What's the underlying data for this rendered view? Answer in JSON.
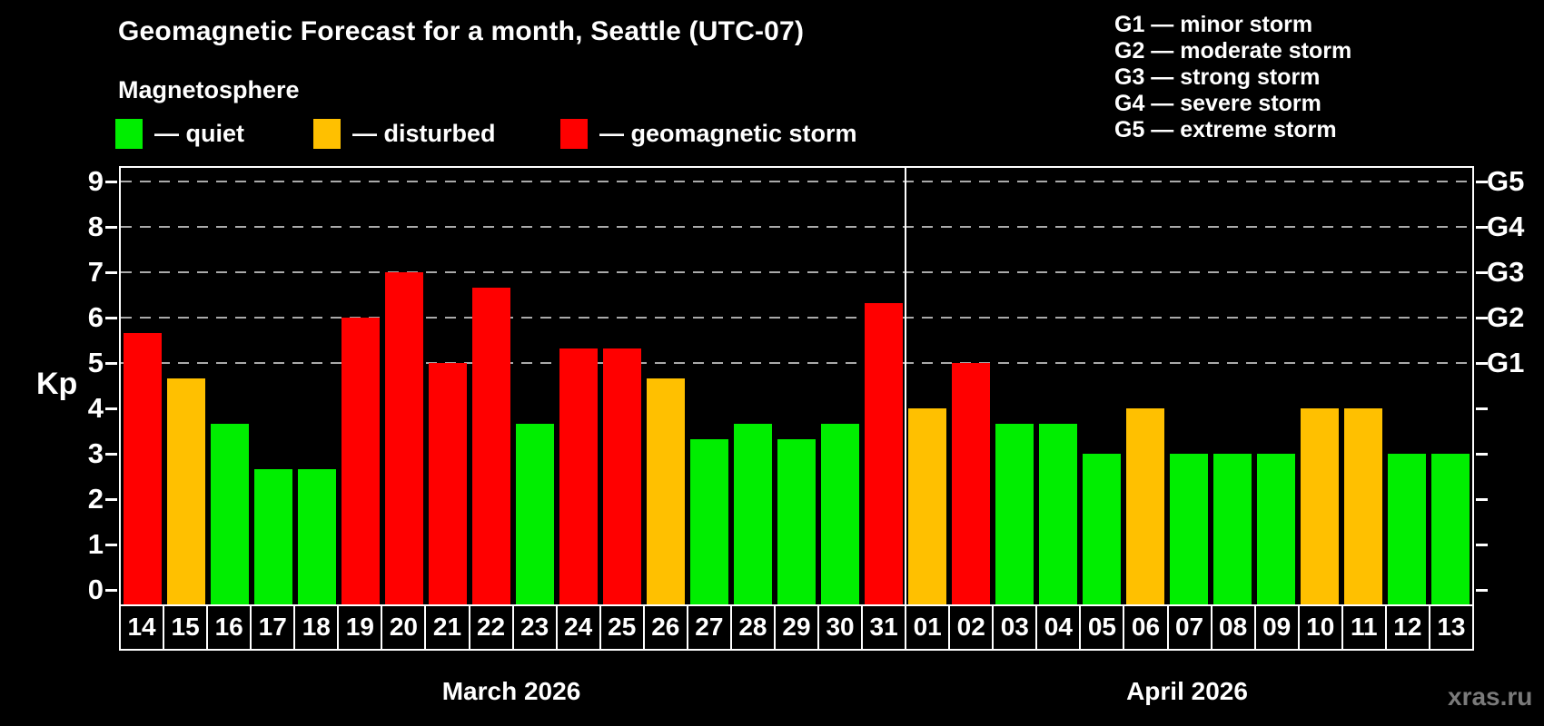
{
  "title": "Geomagnetic Forecast for a month, Seattle (UTC-07)",
  "subtitle": "Magnetosphere",
  "watermark": "xras.ru",
  "magnetosphere_legend": {
    "items": [
      {
        "key": "quiet",
        "label": "— quiet",
        "color": "#00ee00"
      },
      {
        "key": "disturbed",
        "label": "— disturbed",
        "color": "#ffc000"
      },
      {
        "key": "storm",
        "label": "— geomagnetic storm",
        "color": "#ff0000"
      }
    ]
  },
  "storm_scale_legend": {
    "lines": [
      "G1 — minor storm",
      "G2 — moderate storm",
      "G3 — strong storm",
      "G4 — severe storm",
      "G5 — extreme storm"
    ]
  },
  "chart_data": {
    "type": "bar",
    "ylabel": "Kp",
    "ylim": [
      0,
      9
    ],
    "yticks": [
      "0",
      "1",
      "2",
      "3",
      "4",
      "5",
      "6",
      "7",
      "8",
      "9"
    ],
    "gridlines_at_kp": [
      5,
      6,
      7,
      8,
      9
    ],
    "grid_on": true,
    "grid_color": "#aaaaaa",
    "background": "#000000",
    "legend_position": "top-left",
    "right_axis": [
      {
        "kp": 5,
        "label": "G1"
      },
      {
        "kp": 6,
        "label": "G2"
      },
      {
        "kp": 7,
        "label": "G3"
      },
      {
        "kp": 8,
        "label": "G4"
      },
      {
        "kp": 9,
        "label": "G5"
      }
    ],
    "months": [
      {
        "label": "March 2026",
        "start_index": 0,
        "days": 18
      },
      {
        "label": "April 2026",
        "start_index": 18,
        "days": 13
      }
    ],
    "status_colors": {
      "quiet": "#00ee00",
      "disturbed": "#ffc000",
      "storm": "#ff0000"
    },
    "bars": [
      {
        "day": "14",
        "kp": 5.67,
        "status": "storm"
      },
      {
        "day": "15",
        "kp": 4.67,
        "status": "disturbed"
      },
      {
        "day": "16",
        "kp": 3.67,
        "status": "quiet"
      },
      {
        "day": "17",
        "kp": 2.67,
        "status": "quiet"
      },
      {
        "day": "18",
        "kp": 2.67,
        "status": "quiet"
      },
      {
        "day": "19",
        "kp": 6.0,
        "status": "storm"
      },
      {
        "day": "20",
        "kp": 7.0,
        "status": "storm"
      },
      {
        "day": "21",
        "kp": 5.0,
        "status": "storm"
      },
      {
        "day": "22",
        "kp": 6.67,
        "status": "storm"
      },
      {
        "day": "23",
        "kp": 3.67,
        "status": "quiet"
      },
      {
        "day": "24",
        "kp": 5.33,
        "status": "storm"
      },
      {
        "day": "25",
        "kp": 5.33,
        "status": "storm"
      },
      {
        "day": "26",
        "kp": 4.67,
        "status": "disturbed"
      },
      {
        "day": "27",
        "kp": 3.33,
        "status": "quiet"
      },
      {
        "day": "28",
        "kp": 3.67,
        "status": "quiet"
      },
      {
        "day": "29",
        "kp": 3.33,
        "status": "quiet"
      },
      {
        "day": "30",
        "kp": 3.67,
        "status": "quiet"
      },
      {
        "day": "31",
        "kp": 6.33,
        "status": "storm"
      },
      {
        "day": "01",
        "kp": 4.0,
        "status": "disturbed"
      },
      {
        "day": "02",
        "kp": 5.0,
        "status": "storm"
      },
      {
        "day": "03",
        "kp": 3.67,
        "status": "quiet"
      },
      {
        "day": "04",
        "kp": 3.67,
        "status": "quiet"
      },
      {
        "day": "05",
        "kp": 3.0,
        "status": "quiet"
      },
      {
        "day": "06",
        "kp": 4.0,
        "status": "disturbed"
      },
      {
        "day": "07",
        "kp": 3.0,
        "status": "quiet"
      },
      {
        "day": "08",
        "kp": 3.0,
        "status": "quiet"
      },
      {
        "day": "09",
        "kp": 3.0,
        "status": "quiet"
      },
      {
        "day": "10",
        "kp": 4.0,
        "status": "disturbed"
      },
      {
        "day": "11",
        "kp": 4.0,
        "status": "disturbed"
      },
      {
        "day": "12",
        "kp": 3.0,
        "status": "quiet"
      },
      {
        "day": "13",
        "kp": 3.0,
        "status": "quiet"
      }
    ]
  }
}
